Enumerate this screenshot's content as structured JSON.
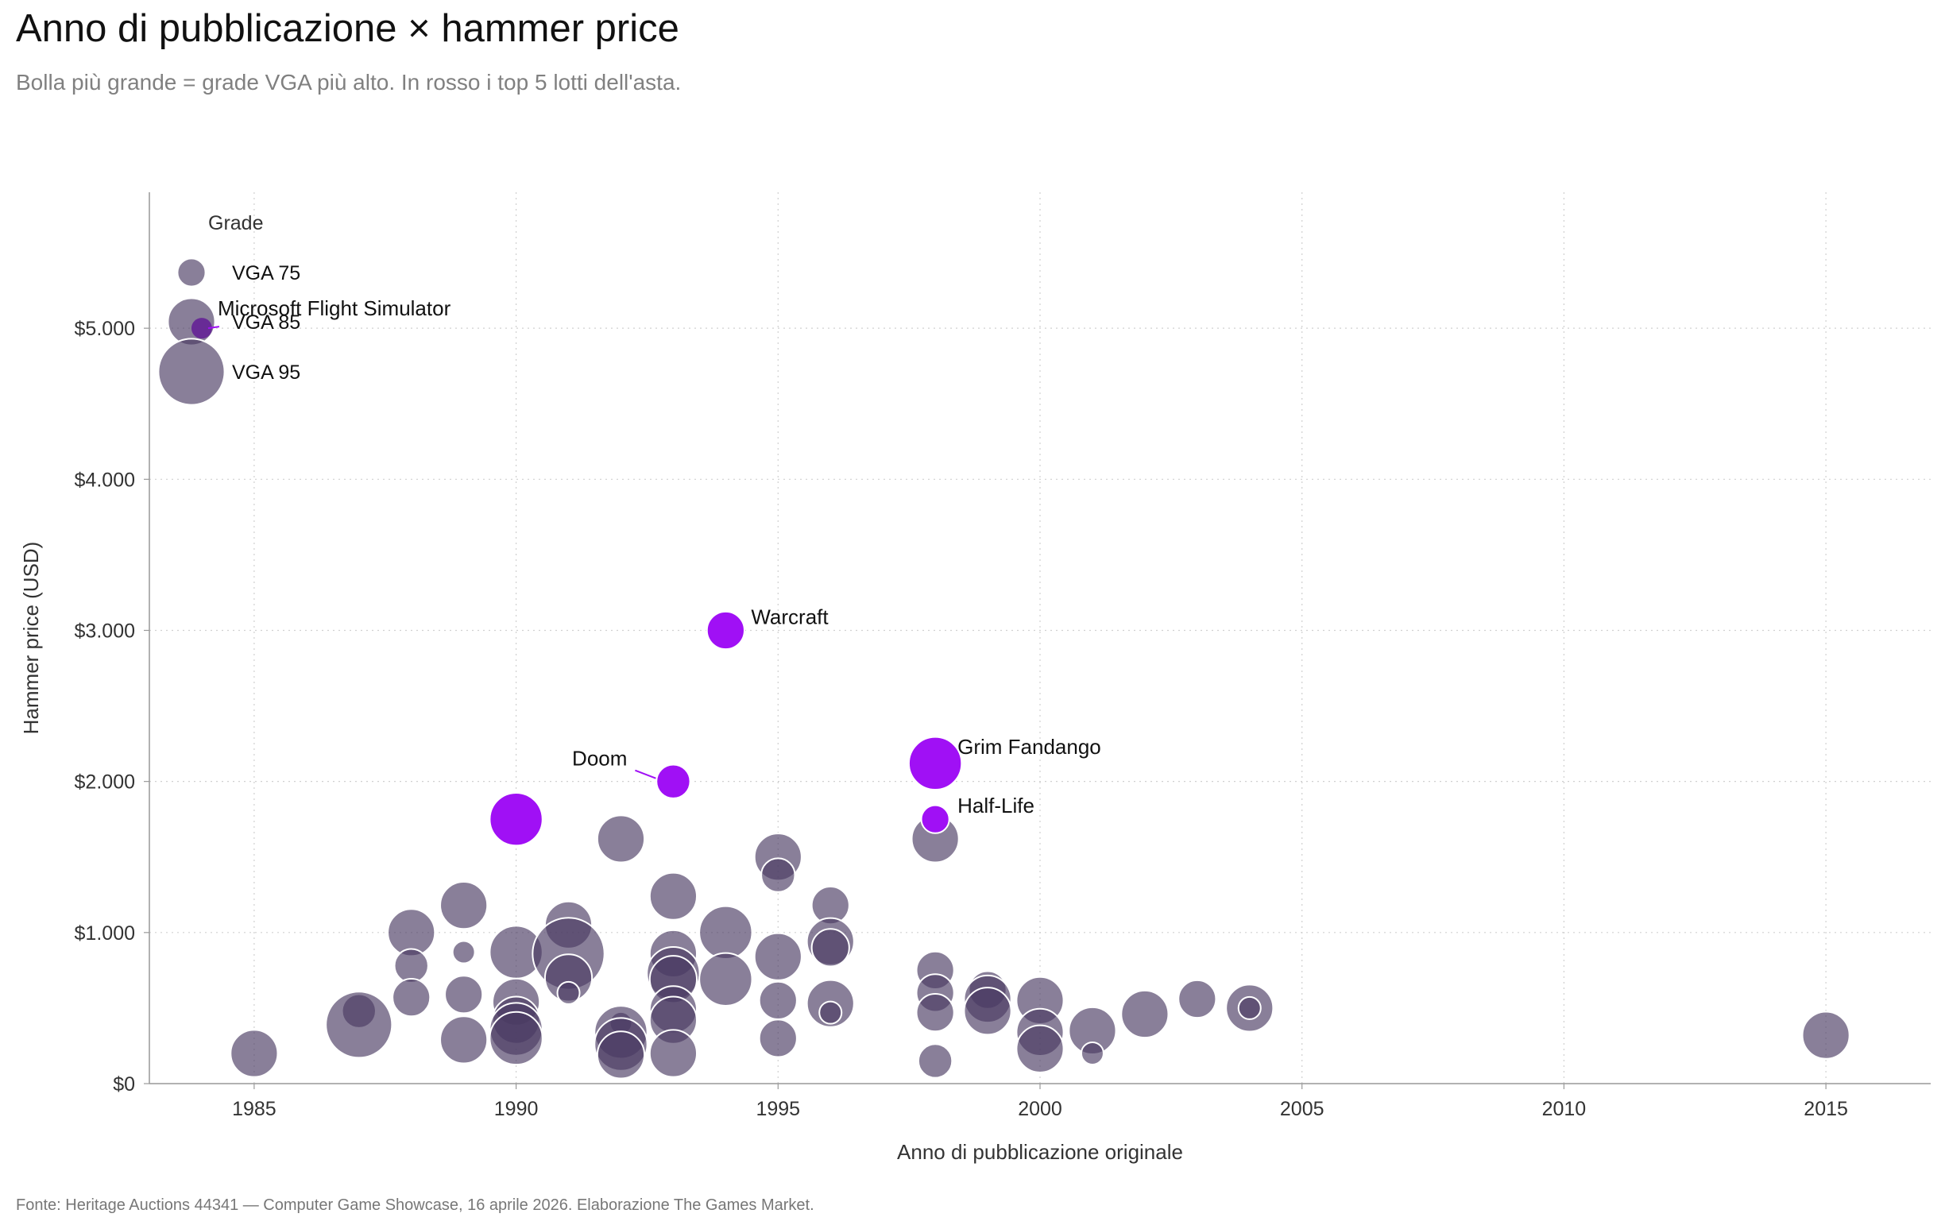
{
  "title": "Anno di pubblicazione × hammer price",
  "subtitle": "Bolla più grande = grade VGA più alto. In rosso i top 5 lotti dell'asta.",
  "source": "Fonte: Heritage Auctions 44341 — Computer Game Showcase, 16 aprile 2026. Elaborazione The Games Market.",
  "colors": {
    "base": "#4a3a63",
    "highlight": "#a010f5",
    "grid": "#d0d0d0",
    "axis": "#999999"
  },
  "chart_data": {
    "type": "scatter",
    "xlabel": "Anno di pubblicazione originale",
    "ylabel": "Hammer price (USD)",
    "xlim": [
      1983,
      2017
    ],
    "ylim": [
      0,
      5900
    ],
    "xticks": [
      1985,
      1990,
      1995,
      2000,
      2005,
      2010,
      2015
    ],
    "yticks": [
      0,
      1000,
      2000,
      3000,
      4000,
      5000
    ],
    "ytick_labels": [
      "$0",
      "$1.000",
      "$2.000",
      "$3.000",
      "$4.000",
      "$5.000"
    ],
    "grid": true,
    "size_encoding": "VGA grade",
    "legend": {
      "title": "Grade",
      "position": "top-left",
      "items": [
        {
          "label": "VGA 75",
          "grade": 75
        },
        {
          "label": "VGA 85",
          "grade": 85
        },
        {
          "label": "VGA 95",
          "grade": 95
        }
      ]
    },
    "highlighted": [
      {
        "label": "Microsoft Flight Simulator",
        "x": 1984,
        "y": 5000,
        "grade": 72
      },
      {
        "label": "Warcraft",
        "x": 1994,
        "y": 3000,
        "grade": 80
      },
      {
        "label": "Grim Fandango",
        "x": 1998,
        "y": 2120,
        "grade": 88
      },
      {
        "label": "Doom",
        "x": 1993,
        "y": 2000,
        "grade": 78
      },
      {
        "label": "Half-Life",
        "x": 1998,
        "y": 1750,
        "grade": 75
      }
    ],
    "highlighted_unlabeled": [
      {
        "x": 1990,
        "y": 1750,
        "grade": 88
      }
    ],
    "points": [
      {
        "x": 1985,
        "y": 200,
        "grade": 85
      },
      {
        "x": 1987,
        "y": 480,
        "grade": 78
      },
      {
        "x": 1987,
        "y": 390,
        "grade": 95
      },
      {
        "x": 1988,
        "y": 1000,
        "grade": 85
      },
      {
        "x": 1988,
        "y": 780,
        "grade": 78
      },
      {
        "x": 1988,
        "y": 570,
        "grade": 80
      },
      {
        "x": 1989,
        "y": 1180,
        "grade": 85
      },
      {
        "x": 1989,
        "y": 870,
        "grade": 72
      },
      {
        "x": 1989,
        "y": 590,
        "grade": 80
      },
      {
        "x": 1989,
        "y": 290,
        "grade": 85
      },
      {
        "x": 1990,
        "y": 870,
        "grade": 88
      },
      {
        "x": 1990,
        "y": 540,
        "grade": 85
      },
      {
        "x": 1990,
        "y": 420,
        "grade": 85
      },
      {
        "x": 1990,
        "y": 360,
        "grade": 88
      },
      {
        "x": 1990,
        "y": 300,
        "grade": 88
      },
      {
        "x": 1991,
        "y": 1050,
        "grade": 85
      },
      {
        "x": 1991,
        "y": 860,
        "grade": 98
      },
      {
        "x": 1991,
        "y": 700,
        "grade": 85
      },
      {
        "x": 1991,
        "y": 600,
        "grade": 72
      },
      {
        "x": 1992,
        "y": 1620,
        "grade": 85
      },
      {
        "x": 1992,
        "y": 400,
        "grade": 72
      },
      {
        "x": 1992,
        "y": 340,
        "grade": 88
      },
      {
        "x": 1992,
        "y": 260,
        "grade": 88
      },
      {
        "x": 1992,
        "y": 190,
        "grade": 85
      },
      {
        "x": 1993,
        "y": 1240,
        "grade": 85
      },
      {
        "x": 1993,
        "y": 860,
        "grade": 85
      },
      {
        "x": 1993,
        "y": 730,
        "grade": 88
      },
      {
        "x": 1993,
        "y": 690,
        "grade": 85
      },
      {
        "x": 1993,
        "y": 490,
        "grade": 85
      },
      {
        "x": 1993,
        "y": 420,
        "grade": 85
      },
      {
        "x": 1993,
        "y": 200,
        "grade": 85
      },
      {
        "x": 1994,
        "y": 1000,
        "grade": 88
      },
      {
        "x": 1994,
        "y": 690,
        "grade": 88
      },
      {
        "x": 1995,
        "y": 1500,
        "grade": 85
      },
      {
        "x": 1995,
        "y": 1380,
        "grade": 78
      },
      {
        "x": 1995,
        "y": 840,
        "grade": 85
      },
      {
        "x": 1995,
        "y": 550,
        "grade": 80
      },
      {
        "x": 1995,
        "y": 300,
        "grade": 80
      },
      {
        "x": 1996,
        "y": 1180,
        "grade": 80
      },
      {
        "x": 1996,
        "y": 940,
        "grade": 85
      },
      {
        "x": 1996,
        "y": 900,
        "grade": 80
      },
      {
        "x": 1996,
        "y": 530,
        "grade": 85
      },
      {
        "x": 1996,
        "y": 470,
        "grade": 72
      },
      {
        "x": 1998,
        "y": 1620,
        "grade": 85
      },
      {
        "x": 1998,
        "y": 750,
        "grade": 80
      },
      {
        "x": 1998,
        "y": 600,
        "grade": 80
      },
      {
        "x": 1998,
        "y": 470,
        "grade": 80
      },
      {
        "x": 1998,
        "y": 150,
        "grade": 78
      },
      {
        "x": 1999,
        "y": 620,
        "grade": 80
      },
      {
        "x": 1999,
        "y": 560,
        "grade": 85
      },
      {
        "x": 1999,
        "y": 480,
        "grade": 85
      },
      {
        "x": 2000,
        "y": 550,
        "grade": 85
      },
      {
        "x": 2000,
        "y": 340,
        "grade": 85
      },
      {
        "x": 2000,
        "y": 230,
        "grade": 85
      },
      {
        "x": 2001,
        "y": 350,
        "grade": 85
      },
      {
        "x": 2001,
        "y": 200,
        "grade": 72
      },
      {
        "x": 2002,
        "y": 460,
        "grade": 85
      },
      {
        "x": 2003,
        "y": 560,
        "grade": 80
      },
      {
        "x": 2004,
        "y": 500,
        "grade": 85
      },
      {
        "x": 2004,
        "y": 500,
        "grade": 72
      },
      {
        "x": 2015,
        "y": 320,
        "grade": 85
      }
    ]
  }
}
